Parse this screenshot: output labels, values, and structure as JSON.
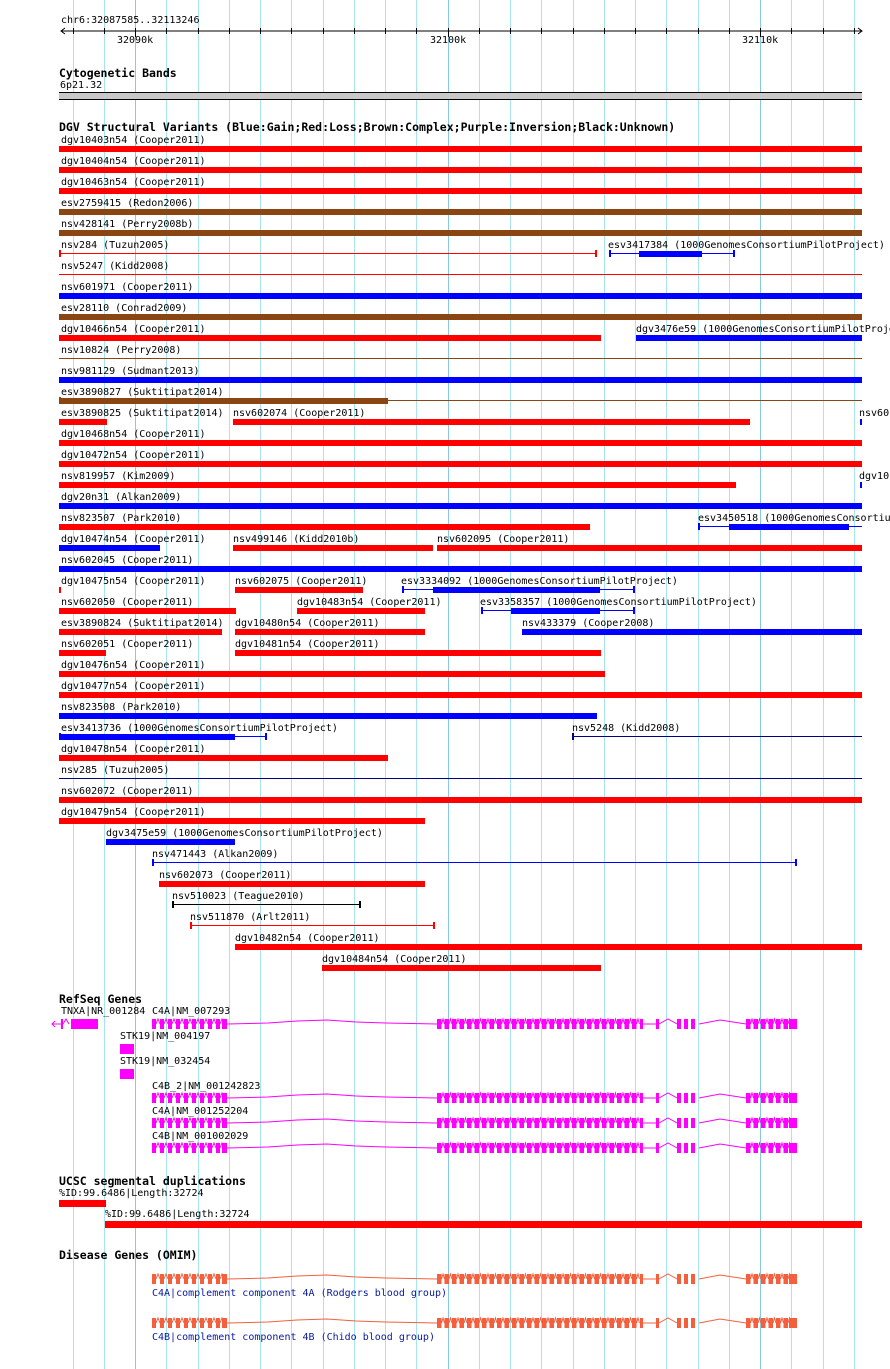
{
  "ruler": {
    "position": "chr6:32087585..32113246",
    "tick_labels": [
      "32090k",
      "32100k",
      "32110k"
    ]
  },
  "cytoband": {
    "title": "Cytogenetic Bands",
    "band": "6p21.32"
  },
  "dgv": {
    "title": "DGV Structural Variants (Blue:Gain;Red:Loss;Brown:Complex;Purple:Inversion;Black:Unknown)",
    "colors": {
      "Gain": "#0000ff",
      "Loss": "#ff0000",
      "Complex": "#8b4513",
      "Inversion": "#800080",
      "Unknown": "#000000",
      "Navy": "#000080"
    },
    "rows": [
      [
        {
          "label": "dgv10403n54 (Cooper2011)",
          "type": "Loss"
        }
      ],
      [
        {
          "label": "dgv10404n54 (Cooper2011)",
          "type": "Loss"
        }
      ],
      [
        {
          "label": "dgv10463n54 (Cooper2011)",
          "type": "Loss"
        }
      ],
      [
        {
          "label": "esv2759415 (Redon2006)",
          "type": "Complex"
        }
      ],
      [
        {
          "label": "nsv428141 (Perry2008b)",
          "type": "Complex"
        }
      ],
      [
        {
          "label": "nsv284 (Tuzun2005)",
          "type": "Loss"
        },
        {
          "label": "esv3417384 (1000GenomesConsortiumPilotProject)",
          "type": "Gain"
        }
      ],
      [
        {
          "label": "nsv5247 (Kidd2008)",
          "type": "Loss"
        }
      ],
      [
        {
          "label": "nsv601971 (Cooper2011)",
          "type": "Gain"
        }
      ],
      [
        {
          "label": "esv28110 (Conrad2009)",
          "type": "Complex"
        }
      ],
      [
        {
          "label": "dgv10466n54 (Cooper2011)",
          "type": "Loss"
        },
        {
          "label": "dgv3476e59 (1000GenomesConsortiumPilotProject)",
          "type": "Gain"
        }
      ],
      [
        {
          "label": "nsv10824 (Perry2008)",
          "type": "Complex"
        }
      ],
      [
        {
          "label": "nsv981129 (Sudmant2013)",
          "type": "Gain"
        }
      ],
      [
        {
          "label": "esv3890827 (Suktitipat2014)",
          "type": "Complex"
        }
      ],
      [
        {
          "label": "esv3890825 (Suktitipat2014)",
          "type": "Loss"
        },
        {
          "label": "nsv602074 (Cooper2011)",
          "type": "Loss"
        },
        {
          "label": "nsv60",
          "type": "Gain"
        }
      ],
      [
        {
          "label": "dgv10468n54 (Cooper2011)",
          "type": "Loss"
        }
      ],
      [
        {
          "label": "dgv10472n54 (Cooper2011)",
          "type": "Loss"
        }
      ],
      [
        {
          "label": "nsv819957 (Kim2009)",
          "type": "Loss"
        },
        {
          "label": "dgv10",
          "type": "Gain"
        }
      ],
      [
        {
          "label": "dgv20n31 (Alkan2009)",
          "type": "Gain"
        }
      ],
      [
        {
          "label": "nsv823507 (Park2010)",
          "type": "Loss"
        },
        {
          "label": "esv3450518 (1000GenomesConsortiu",
          "type": "Gain"
        }
      ],
      [
        {
          "label": "dgv10474n54 (Cooper2011)",
          "type": "Gain"
        },
        {
          "label": "nsv499146 (Kidd2010b)",
          "type": "Loss"
        },
        {
          "label": "nsv602095 (Cooper2011)",
          "type": "Loss"
        }
      ],
      [
        {
          "label": "nsv602045 (Cooper2011)",
          "type": "Gain"
        }
      ],
      [
        {
          "label": "dgv10475n54 (Cooper2011)",
          "type": "Loss"
        },
        {
          "label": "nsv602075 (Cooper2011)",
          "type": "Loss"
        },
        {
          "label": "esv3334092 (1000GenomesConsortiumPilotProject)",
          "type": "Gain"
        }
      ],
      [
        {
          "label": "nsv602050 (Cooper2011)",
          "type": "Loss"
        },
        {
          "label": "dgv10483n54 (Cooper2011)",
          "type": "Loss"
        },
        {
          "label": "esv3358357 (1000GenomesConsortiumPilotProject)",
          "type": "Gain"
        }
      ],
      [
        {
          "label": "esv3890824 (Suktitipat2014)",
          "type": "Loss"
        },
        {
          "label": "dgv10480n54 (Cooper2011)",
          "type": "Loss"
        },
        {
          "label": "nsv433379 (Cooper2008)",
          "type": "Gain"
        }
      ],
      [
        {
          "label": "nsv602051 (Cooper2011)",
          "type": "Loss"
        },
        {
          "label": "dgv10481n54 (Cooper2011)",
          "type": "Loss"
        }
      ],
      [
        {
          "label": "dgv10476n54 (Cooper2011)",
          "type": "Loss"
        }
      ],
      [
        {
          "label": "dgv10477n54 (Cooper2011)",
          "type": "Loss"
        }
      ],
      [
        {
          "label": "nsv823508 (Park2010)",
          "type": "Gain"
        }
      ],
      [
        {
          "label": "esv3413736 (1000GenomesConsortiumPilotProject)",
          "type": "Gain"
        },
        {
          "label": "nsv5248 (Kidd2008)",
          "type": "Navy"
        }
      ],
      [
        {
          "label": "dgv10478n54 (Cooper2011)",
          "type": "Loss"
        }
      ],
      [
        {
          "label": "nsv285 (Tuzun2005)",
          "type": "Navy"
        }
      ],
      [
        {
          "label": "nsv602072 (Cooper2011)",
          "type": "Loss"
        }
      ],
      [
        {
          "label": "dgv10479n54 (Cooper2011)",
          "type": "Loss"
        }
      ],
      [
        {
          "label": "dgv3475e59 (1000GenomesConsortiumPilotProject)",
          "type": "Gain"
        }
      ],
      [
        {
          "label": "nsv471443 (Alkan2009)",
          "type": "Gain"
        }
      ],
      [
        {
          "label": "nsv602073 (Cooper2011)",
          "type": "Loss"
        }
      ],
      [
        {
          "label": "nsv510023 (Teague2010)",
          "type": "Unknown"
        }
      ],
      [
        {
          "label": "nsv511870 (Arlt2011)",
          "type": "Loss"
        }
      ],
      [
        {
          "label": "dgv10482n54 (Cooper2011)",
          "type": "Loss"
        }
      ],
      [
        {
          "label": "dgv10484n54 (Cooper2011)",
          "type": "Loss"
        }
      ]
    ]
  },
  "refseq": {
    "title": "RefSeq Genes",
    "color": "#ff00ff",
    "genes": [
      "TNXA|NR_001284",
      "C4A|NM_007293",
      "STK19|NM_004197",
      "STK19|NM_032454",
      "C4B_2|NM_001242823",
      "C4A|NM_001252204",
      "C4B|NM_001002029"
    ]
  },
  "segdup": {
    "title": "UCSC segmental duplications",
    "color": "#ff0000",
    "items": [
      "%ID:99.6486|Length:32724",
      "%ID:99.6486|Length:32724"
    ]
  },
  "omim": {
    "title": "Disease Genes (OMIM)",
    "color": "#f4603e",
    "genes": [
      "C4A|complement component 4A (Rodgers blood group)",
      "C4B|complement component 4B (Chido blood group)"
    ]
  }
}
